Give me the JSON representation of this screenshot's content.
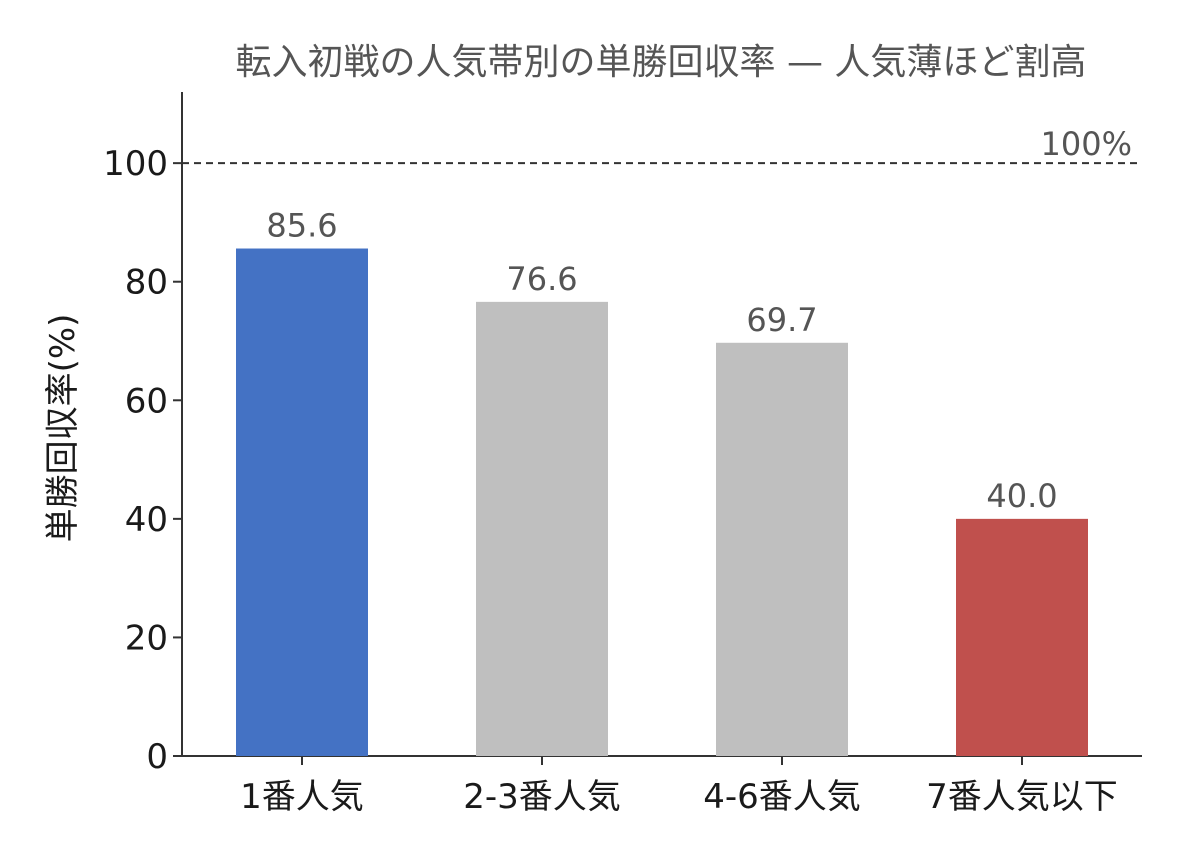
{
  "chart_data": {
    "type": "bar",
    "title": "転入初戦の人気帯別の単勝回収率 — 人気薄ほど割高",
    "xlabel": "",
    "ylabel": "単勝回収率(%)",
    "categories": [
      "1番人気",
      "2-3番人気",
      "4-6番人気",
      "7番人気以下"
    ],
    "values": [
      85.6,
      76.6,
      69.7,
      40.0
    ],
    "value_labels": [
      "85.6",
      "76.6",
      "69.7",
      "40.0"
    ],
    "bar_colors": [
      "#4472c4",
      "#bfbfbf",
      "#bfbfbf",
      "#c0504d"
    ],
    "ylim": [
      0,
      112
    ],
    "yticks": [
      0,
      20,
      40,
      60,
      80,
      100
    ],
    "ytick_labels": [
      "0",
      "20",
      "40",
      "60",
      "80",
      "100"
    ],
    "grid": false,
    "reference_line": {
      "value": 100,
      "label": "100%",
      "style": "dashed",
      "color": "#333333"
    }
  }
}
